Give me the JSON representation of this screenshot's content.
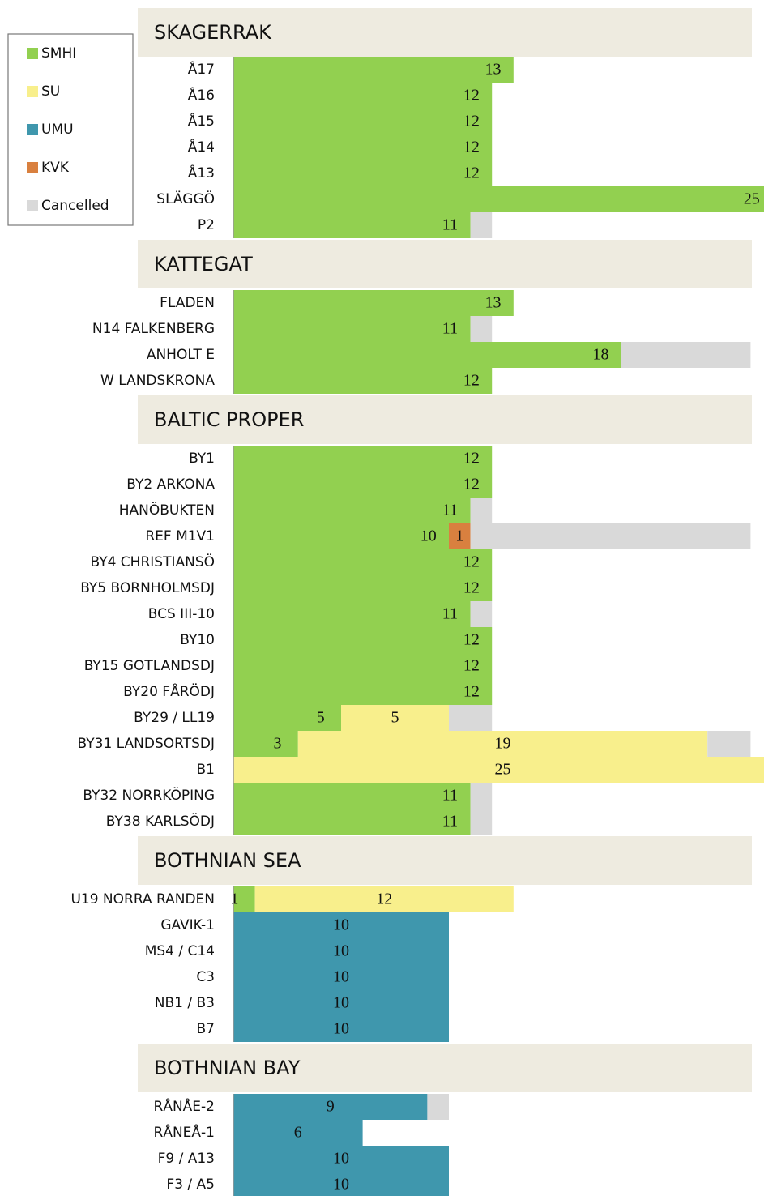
{
  "chart_data": {
    "type": "bar",
    "orientation": "horizontal",
    "stacked": true,
    "legend": "top-left",
    "series": [
      {
        "name": "SMHI",
        "color": "#92d050"
      },
      {
        "name": "SU",
        "color": "#f8ef8c"
      },
      {
        "name": "UMU",
        "color": "#3f97ad"
      },
      {
        "name": "KVK",
        "color": "#d9803f"
      },
      {
        "name": "Cancelled",
        "color": "#d9d9d9",
        "labels": false
      }
    ],
    "sections": [
      {
        "title": "SKAGERRAK",
        "categories": [
          "Å17",
          "Å16",
          "Å15",
          "Å14",
          "Å13",
          "SLÄGGÖ",
          "P2"
        ],
        "values": [
          [
            13,
            12,
            12,
            12,
            12,
            25,
            11
          ],
          [
            null,
            null,
            null,
            null,
            null,
            null,
            null
          ],
          [
            null,
            null,
            null,
            null,
            null,
            null,
            null
          ],
          [
            null,
            null,
            null,
            null,
            null,
            null,
            null
          ],
          [
            null,
            null,
            null,
            null,
            null,
            null,
            1
          ]
        ]
      },
      {
        "title": "KATTEGAT",
        "categories": [
          "FLADEN",
          "N14 FALKENBERG",
          "ANHOLT E",
          "W LANDSKRONA"
        ],
        "values": [
          [
            13,
            11,
            18,
            12
          ],
          [
            null,
            null,
            null,
            null
          ],
          [
            null,
            null,
            null,
            null
          ],
          [
            null,
            null,
            null,
            null
          ],
          [
            null,
            1,
            6,
            null
          ]
        ]
      },
      {
        "title": "BALTIC PROPER",
        "categories": [
          "BY1",
          "BY2 ARKONA",
          "HANÖBUKTEN",
          "REF M1V1",
          "BY4 CHRISTIANSÖ",
          "BY5 BORNHOLMSDJ",
          "BCS III-10",
          "BY10",
          "BY15 GOTLANDSDJ",
          "BY20 FÅRÖDJ",
          "BY29 / LL19",
          "BY31 LANDSORTSDJ",
          "B1",
          "BY32 NORRKÖPING",
          "BY38 KARLSÖDJ"
        ],
        "values": [
          [
            12,
            12,
            11,
            10,
            12,
            12,
            11,
            12,
            12,
            12,
            5,
            3,
            null,
            11,
            11
          ],
          [
            null,
            null,
            null,
            null,
            null,
            null,
            null,
            null,
            null,
            null,
            5,
            19,
            25,
            null,
            null
          ],
          [
            null,
            null,
            null,
            null,
            null,
            null,
            null,
            null,
            null,
            null,
            null,
            null,
            null,
            null,
            null
          ],
          [
            null,
            null,
            null,
            1,
            null,
            null,
            null,
            null,
            null,
            null,
            null,
            null,
            null,
            null,
            null
          ],
          [
            null,
            null,
            1,
            13,
            null,
            null,
            1,
            null,
            null,
            null,
            2,
            2,
            null,
            1,
            1
          ]
        ]
      },
      {
        "title": "BOTHNIAN SEA",
        "categories": [
          "U19 NORRA RANDEN",
          "GAVIK-1",
          "MS4 / C14",
          "C3",
          "NB1 / B3",
          "B7"
        ],
        "values": [
          [
            1,
            null,
            null,
            null,
            null,
            null
          ],
          [
            12,
            null,
            null,
            null,
            null,
            null
          ],
          [
            null,
            10,
            10,
            10,
            10,
            10
          ],
          [
            null,
            null,
            null,
            null,
            null,
            null
          ],
          [
            null,
            null,
            null,
            null,
            null,
            null
          ]
        ]
      },
      {
        "title": "BOTHNIAN BAY",
        "categories": [
          "RÅNÅE-2",
          "RÅNEÅ-1",
          "F9 / A13",
          "F3 / A5"
        ],
        "values": [
          [
            null,
            null,
            null,
            null
          ],
          [
            null,
            null,
            null,
            null
          ],
          [
            9,
            6,
            10,
            10
          ],
          [
            null,
            null,
            null,
            null
          ],
          [
            1,
            null,
            null,
            null
          ]
        ]
      }
    ]
  }
}
